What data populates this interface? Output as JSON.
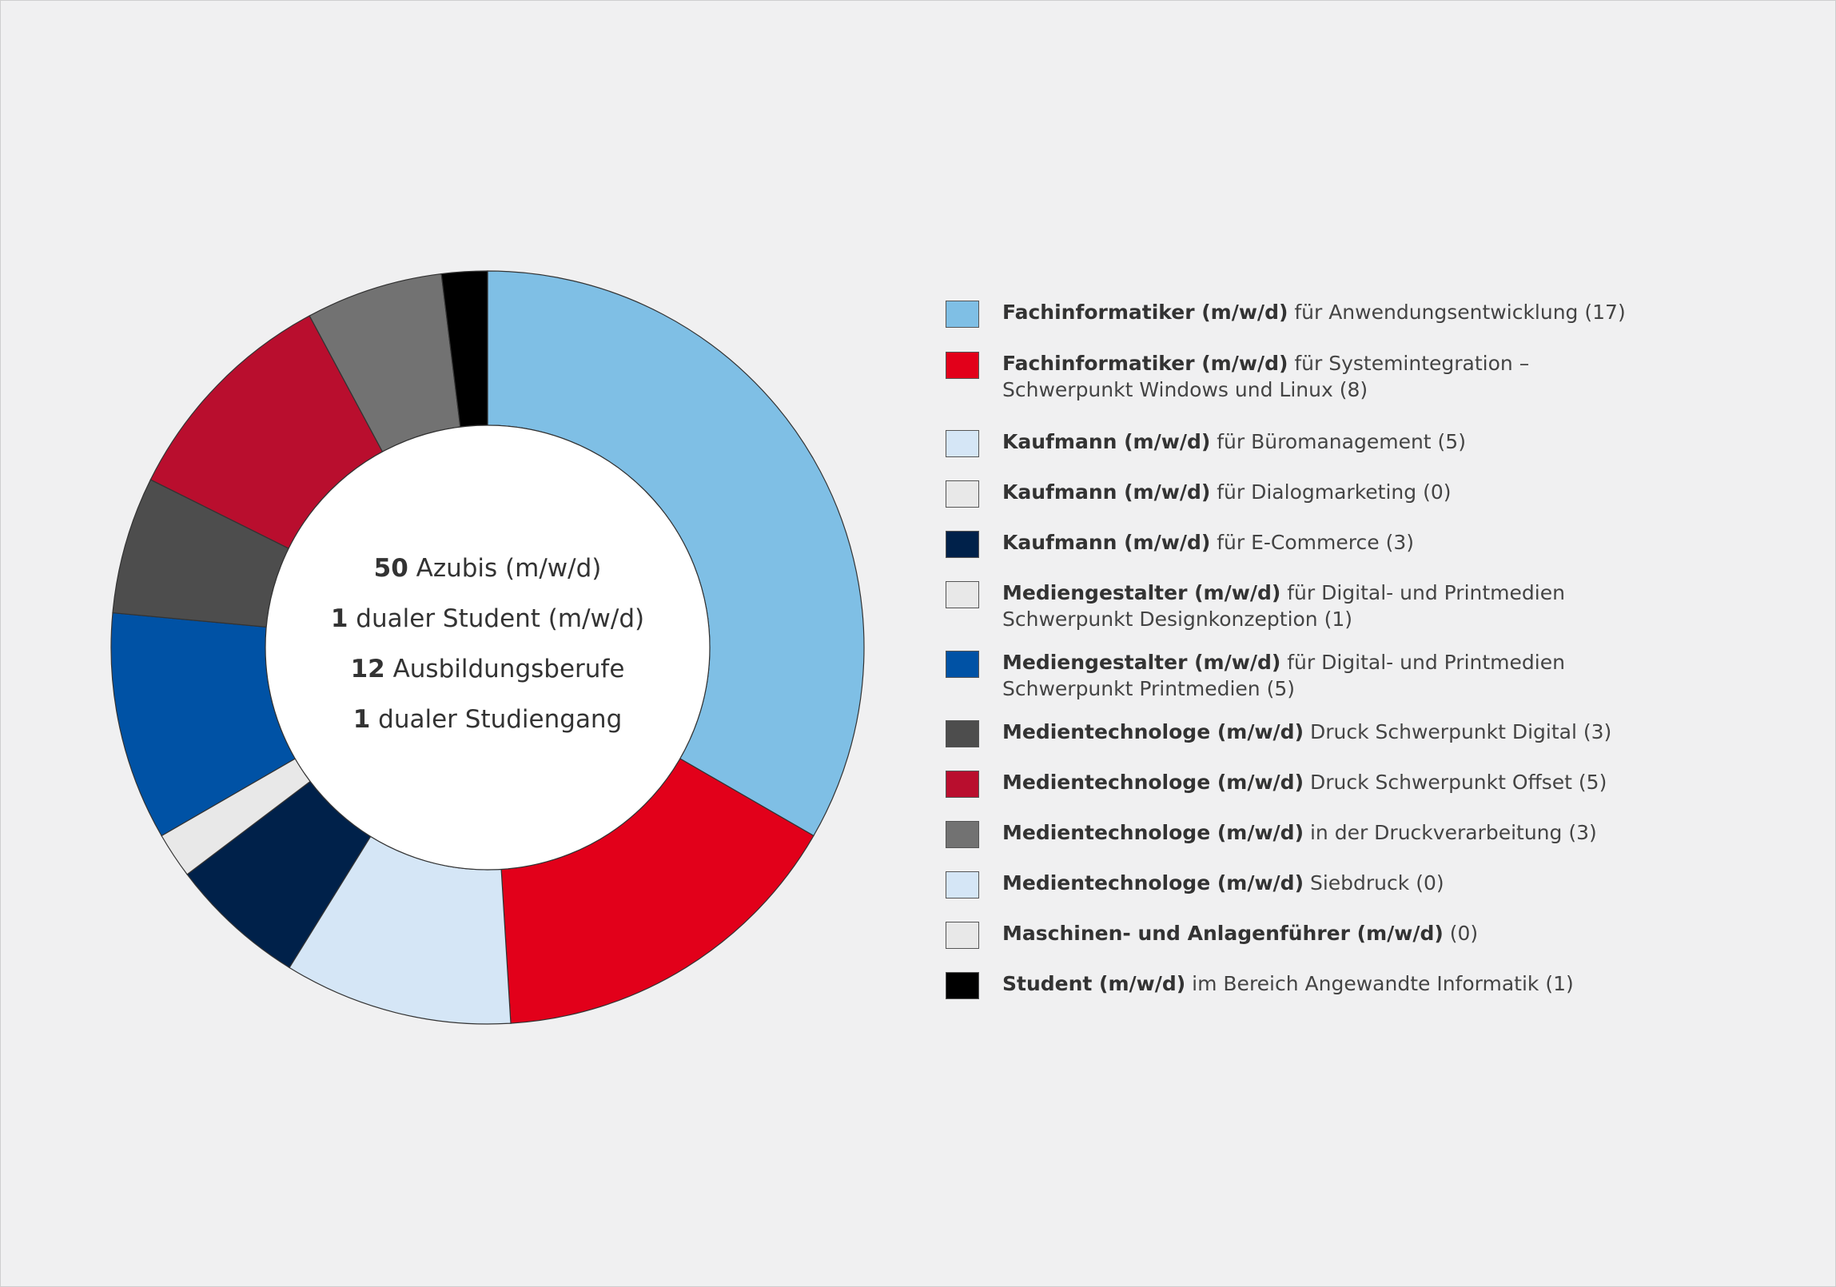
{
  "chart_data": {
    "type": "pie",
    "variant": "donut",
    "title": "",
    "center_lines": [
      {
        "bold": "50",
        "text": " Azubis (m/w/d)"
      },
      {
        "bold": "1",
        "text": " dualer Student (m/w/d)"
      },
      {
        "bold": "12",
        "text": " Ausbildungsberufe"
      },
      {
        "bold": "1",
        "text": " dualer Studiengang"
      }
    ],
    "legend_position": "right",
    "slices": [
      {
        "label_bold": "Fachinformatiker (m/w/d)",
        "label_rest": " für Anwendungsentwicklung (17)",
        "value": 17,
        "color": "#7fbfe5"
      },
      {
        "label_bold": "Fachinformatiker (m/w/d)",
        "label_rest": " für Systemintegration –\nSchwerpunkt Windows und Linux (8)",
        "value": 8,
        "color": "#e2001a"
      },
      {
        "label_bold": "Kaufmann (m/w/d)",
        "label_rest": " für Büromanagement (5)",
        "value": 5,
        "color": "#d5e6f6"
      },
      {
        "label_bold": "Kaufmann (m/w/d)",
        "label_rest": " für Dialogmarketing (0)",
        "value": 0,
        "color": "#e8e8e8"
      },
      {
        "label_bold": "Kaufmann (m/w/d)",
        "label_rest": " für E-Commerce (3)",
        "value": 3,
        "color": "#00214a"
      },
      {
        "label_bold": "Mediengestalter (m/w/d)",
        "label_rest": " für Digital- und Printmedien\nSchwerpunkt Designkonzeption (1)",
        "value": 1,
        "color": "#e8e8e8"
      },
      {
        "label_bold": "Mediengestalter (m/w/d)",
        "label_rest": " für Digital- und Printmedien\nSchwerpunkt Printmedien (5)",
        "value": 5,
        "color": "#0052a5"
      },
      {
        "label_bold": "Medientechnologe (m/w/d)",
        "label_rest": " Druck Schwerpunkt Digital (3)",
        "value": 3,
        "color": "#4d4d4d"
      },
      {
        "label_bold": "Medientechnologe (m/w/d)",
        "label_rest": " Druck Schwerpunkt Offset (5)",
        "value": 5,
        "color": "#b90e2e"
      },
      {
        "label_bold": "Medientechnologe (m/w/d)",
        "label_rest": " in der Druckverarbeitung (3)",
        "value": 3,
        "color": "#727272"
      },
      {
        "label_bold": "Medientechnologe (m/w/d)",
        "label_rest": " Siebdruck (0)",
        "value": 0,
        "color": "#d5e6f6"
      },
      {
        "label_bold": "Maschinen- und Anlagenführer (m/w/d)",
        "label_rest": " (0)",
        "value": 0,
        "color": "#e8e8e8"
      },
      {
        "label_bold": "Student (m/w/d)",
        "label_rest": " im Bereich Angewandte Informatik (1)",
        "value": 1,
        "color": "#000000"
      }
    ]
  }
}
